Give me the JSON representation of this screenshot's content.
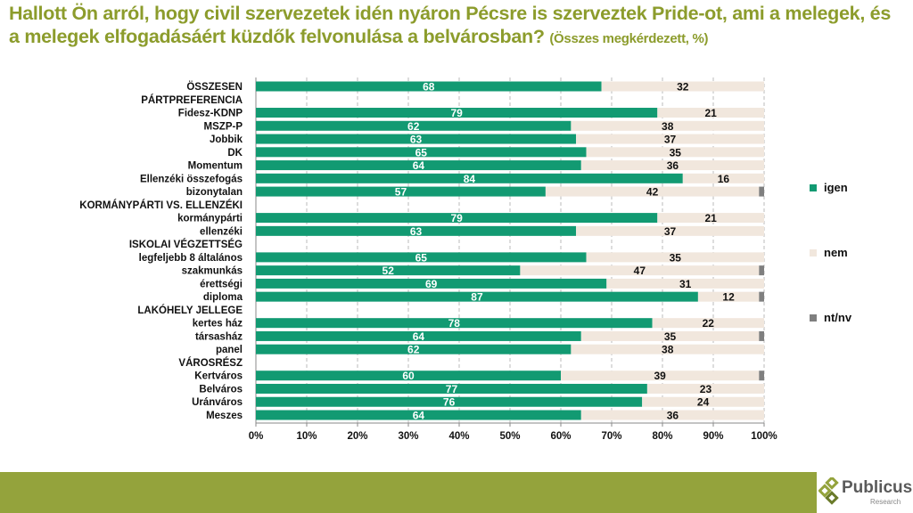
{
  "title": {
    "main": "Hallott Ön arról, hogy civil szervezetek idén nyáron Pécsre is szerveztek Pride-ot, ami a melegek, és a melegek elfogadásáért küzdők felvonulása a belvárosban?",
    "sub": "(Összes megkérdezett, %)"
  },
  "legend": [
    {
      "label": "igen",
      "color": "#129a72"
    },
    {
      "label": "nem",
      "color": "#f1e7dd"
    },
    {
      "label": "nt/nv",
      "color": "#7f7f7f"
    }
  ],
  "logo": {
    "name": "Publicus",
    "sub": "Research"
  },
  "chart_data": {
    "type": "bar",
    "orientation": "horizontal",
    "stacked": true,
    "xlim": [
      0,
      100
    ],
    "xticks": [
      "0%",
      "10%",
      "20%",
      "30%",
      "40%",
      "50%",
      "60%",
      "70%",
      "80%",
      "90%",
      "100%"
    ],
    "categories": [
      "ÖSSZESEN",
      "PÁRTPREFERENCIA",
      "Fidesz-KDNP",
      "MSZP-P",
      "Jobbik",
      "DK",
      "Momentum",
      "Ellenzéki összefogás",
      "bizonytalan",
      "KORMÁNYPÁRTI VS. ELLENZÉKI",
      "kormánypárti",
      "ellenzéki",
      "ISKOLAI VÉGZETTSÉG",
      "legfeljebb 8 általános",
      "szakmunkás",
      "érettségi",
      "diploma",
      "LAKÓHELY JELLEGE",
      "kertes ház",
      "társasház",
      "panel",
      "VÁROSRÉSZ",
      "Kertváros",
      "Belváros",
      "Uránváros",
      "Meszes"
    ],
    "series": [
      {
        "name": "igen",
        "values": [
          68,
          null,
          79,
          62,
          63,
          65,
          64,
          84,
          57,
          null,
          79,
          63,
          null,
          65,
          52,
          69,
          87,
          null,
          78,
          64,
          62,
          null,
          60,
          77,
          76,
          64
        ]
      },
      {
        "name": "nem",
        "values": [
          32,
          null,
          21,
          38,
          37,
          35,
          36,
          16,
          42,
          null,
          21,
          37,
          null,
          35,
          47,
          31,
          12,
          null,
          22,
          35,
          38,
          null,
          39,
          23,
          24,
          36
        ]
      },
      {
        "name": "nt/nv",
        "values": [
          0,
          null,
          0,
          0,
          0,
          0,
          0,
          0,
          1,
          null,
          0,
          0,
          null,
          0,
          1,
          0,
          1,
          null,
          0,
          1,
          0,
          null,
          1,
          0,
          0,
          0
        ]
      }
    ]
  }
}
